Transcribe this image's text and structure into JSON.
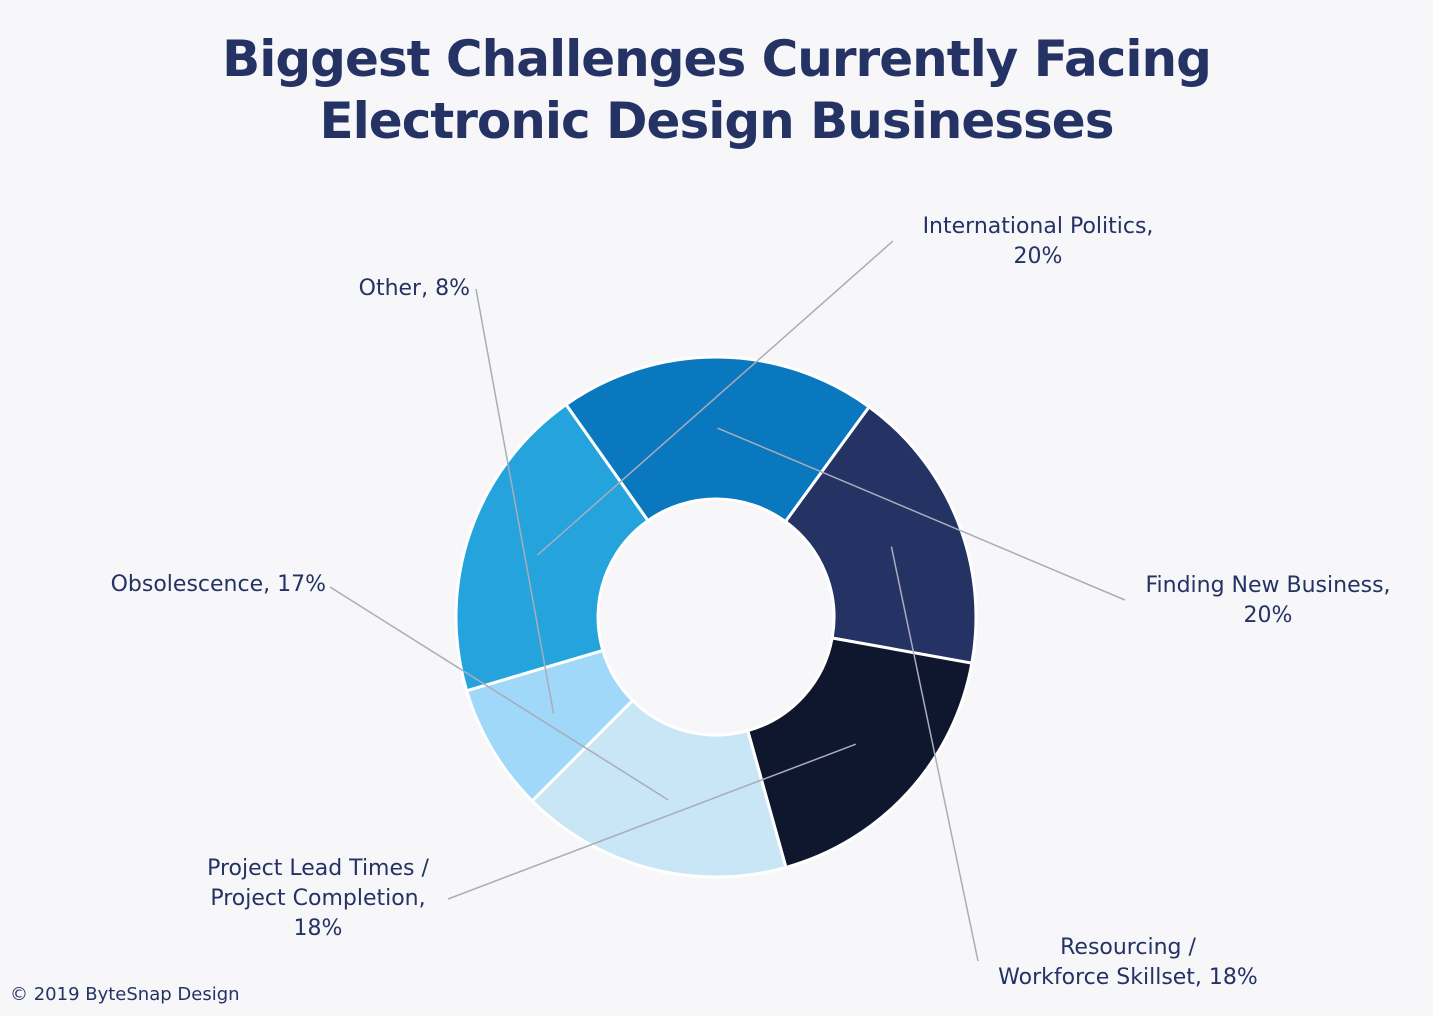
{
  "title_line1": "Biggest Challenges Currently Facing",
  "title_line2": "Electronic Design Businesses",
  "footer": "© 2019 ByteSnap Design",
  "chart_data": {
    "type": "pie",
    "style": "donut",
    "title": "Biggest Challenges Currently Facing Electronic Design Businesses",
    "slices": [
      {
        "name": "International Politics",
        "value": 20,
        "color": "#24a3dd",
        "label_lines": [
          "International Politics,",
          "20%"
        ]
      },
      {
        "name": "Finding New Business",
        "value": 20,
        "color": "#0a78be",
        "label_lines": [
          "Finding New Business,",
          "20%"
        ]
      },
      {
        "name": "Resourcing / Workforce Skillset",
        "value": 18,
        "color": "#243264",
        "label_lines": [
          "Resourcing /",
          "Workforce Skillset, 18%"
        ]
      },
      {
        "name": "Project Lead Times / Project Completion",
        "value": 18,
        "color": "#0f172f",
        "label_lines": [
          "Project Lead Times /",
          "Project Completion,",
          "18%"
        ]
      },
      {
        "name": "Obsolescence",
        "value": 17,
        "color": "#c8e6f6",
        "label_lines": [
          "Obsolescence, 17%"
        ]
      },
      {
        "name": "Other",
        "value": 8,
        "color": "#a0d8f9",
        "label_lines": [
          "Other, 8%"
        ]
      }
    ],
    "legend": "none",
    "leader_line_color": "#a9acba"
  }
}
